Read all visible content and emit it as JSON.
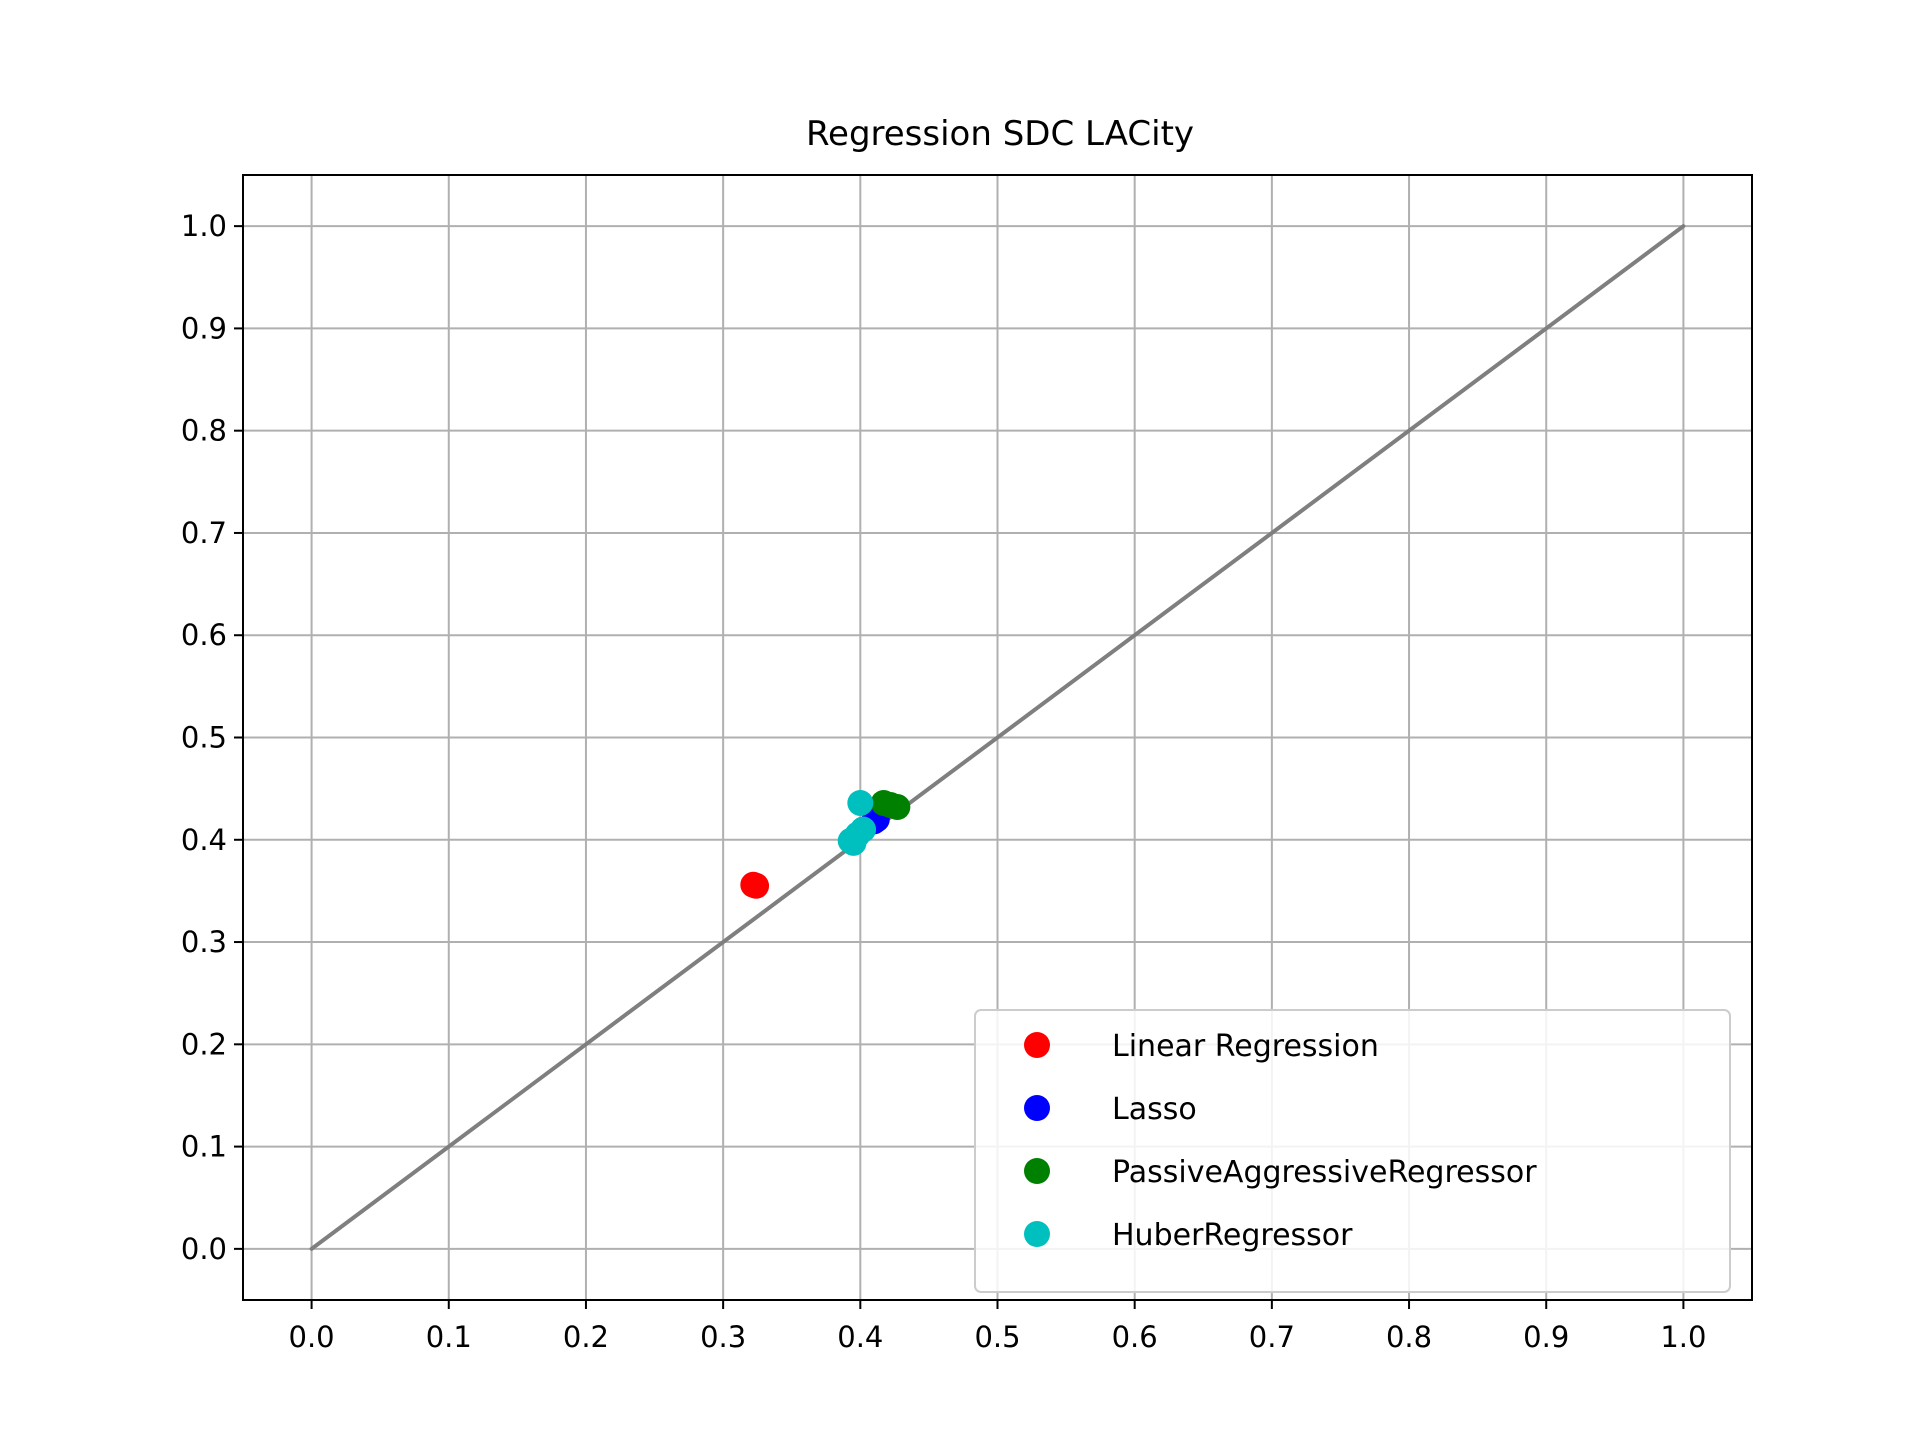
{
  "chart_data": {
    "type": "scatter",
    "title": "Regression SDC LACity",
    "xlabel": "",
    "ylabel": "",
    "xlim": [
      -0.05,
      1.05
    ],
    "ylim": [
      -0.05,
      1.05
    ],
    "x_ticks": [
      "0.0",
      "0.1",
      "0.2",
      "0.3",
      "0.4",
      "0.5",
      "0.6",
      "0.7",
      "0.8",
      "0.9",
      "1.0"
    ],
    "y_ticks": [
      "0.0",
      "0.1",
      "0.2",
      "0.3",
      "0.4",
      "0.5",
      "0.6",
      "0.7",
      "0.8",
      "0.9",
      "1.0"
    ],
    "grid": true,
    "legend_position": "bottom-right",
    "reference_line": {
      "x": [
        0,
        1
      ],
      "y": [
        0,
        1
      ],
      "color": "#7f7f7f"
    },
    "series": [
      {
        "name": "Linear Regression",
        "color": "#ff0000",
        "points": [
          [
            0.322,
            0.356
          ],
          [
            0.324,
            0.355
          ]
        ]
      },
      {
        "name": "Lasso",
        "color": "#0000ff",
        "points": [
          [
            0.412,
            0.42
          ],
          [
            0.41,
            0.418
          ]
        ]
      },
      {
        "name": "PassiveAggressiveRegressor",
        "color": "#008000",
        "points": [
          [
            0.417,
            0.436
          ],
          [
            0.427,
            0.432
          ],
          [
            0.422,
            0.434
          ]
        ]
      },
      {
        "name": "HuberRegressor",
        "color": "#00bfbf",
        "points": [
          [
            0.4,
            0.436
          ],
          [
            0.402,
            0.41
          ],
          [
            0.398,
            0.405
          ],
          [
            0.395,
            0.397
          ],
          [
            0.393,
            0.399
          ]
        ]
      }
    ]
  }
}
